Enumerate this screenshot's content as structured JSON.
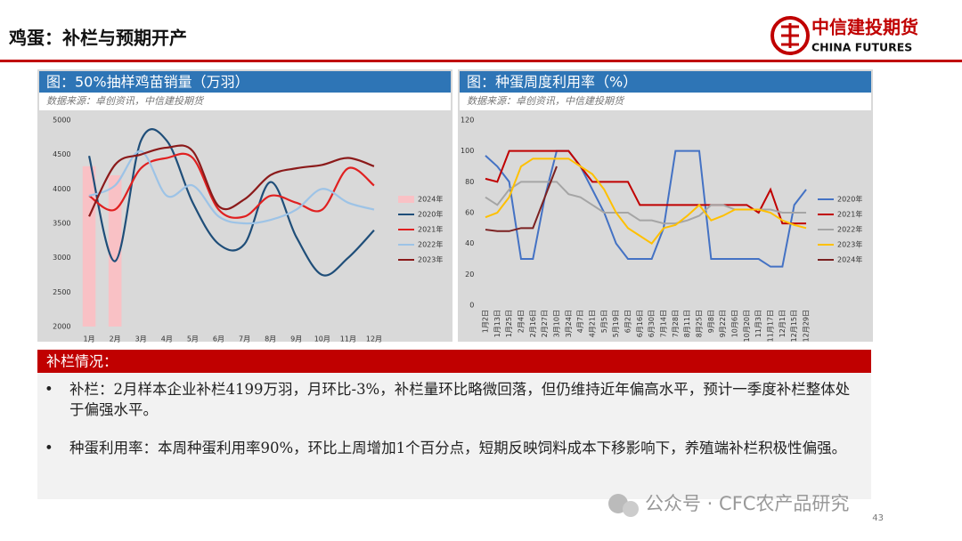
{
  "header": {
    "title": "鸡蛋：补栏与预期开产",
    "logo_cn": "中信建投期货",
    "logo_en": "CHINA FUTURES"
  },
  "chart_data": [
    {
      "type": "line",
      "smooth": true,
      "legend": "right",
      "title": "图：50%抽样鸡苗销量（万羽）",
      "subtitle": "数据来源：卓创资讯，中信建投期货",
      "categories": [
        "1月",
        "2月",
        "3月",
        "4月",
        "5月",
        "6月",
        "7月",
        "8月",
        "9月",
        "10月",
        "11月",
        "12月"
      ],
      "ylim": [
        2000,
        5000
      ],
      "yticks": [
        2000,
        2500,
        3000,
        3500,
        4000,
        4500,
        5000
      ],
      "series": [
        {
          "name": "2024年",
          "type": "bar",
          "color": "#f9c1c5",
          "values": [
            4330,
            4199,
            null,
            null,
            null,
            null,
            null,
            null,
            null,
            null,
            null,
            null
          ]
        },
        {
          "name": "2020年",
          "color": "#1f4e79",
          "values": [
            4480,
            2950,
            4700,
            4700,
            3800,
            3200,
            3200,
            4100,
            3300,
            2750,
            3000,
            3400
          ]
        },
        {
          "name": "2021年",
          "color": "#e02020",
          "values": [
            3900,
            3700,
            4300,
            4450,
            4450,
            3700,
            3600,
            3900,
            3800,
            3700,
            4300,
            4050
          ]
        },
        {
          "name": "2022年",
          "color": "#9dc3e6",
          "values": [
            3900,
            4050,
            4550,
            3900,
            4050,
            3600,
            3500,
            3550,
            3700,
            4000,
            3800,
            3700
          ]
        },
        {
          "name": "2023年",
          "color": "#8b1a1a",
          "values": [
            3600,
            4350,
            4500,
            4600,
            4550,
            3750,
            3850,
            4200,
            4300,
            4350,
            4450,
            4330
          ]
        }
      ]
    },
    {
      "type": "line",
      "legend": "right",
      "title": "图：种蛋周度利用率（%）",
      "subtitle": "数据来源：卓创资讯，中信建投期货",
      "categories": [
        "1月2日",
        "1月13日",
        "1月25日",
        "2月4日",
        "2月16日",
        "2月27日",
        "3月10日",
        "3月24日",
        "4月7日",
        "4月21日",
        "5月5日",
        "5月19日",
        "6月2日",
        "6月16日",
        "6月30日",
        "7月14日",
        "7月28日",
        "8月11日",
        "8月25日",
        "9月8日",
        "9月22日",
        "10月6日",
        "10月20日",
        "11月3日",
        "11月17日",
        "12月1日",
        "12月15日",
        "12月29日"
      ],
      "ylim": [
        0,
        120
      ],
      "yticks": [
        0,
        20,
        40,
        60,
        80,
        100,
        120
      ],
      "series": [
        {
          "name": "2020年",
          "color": "#4472c4",
          "values": [
            97,
            90,
            80,
            30,
            30,
            70,
            100,
            100,
            90,
            75,
            60,
            40,
            30,
            30,
            30,
            50,
            100,
            100,
            100,
            30,
            30,
            30,
            30,
            30,
            25,
            25,
            65,
            75
          ]
        },
        {
          "name": "2021年",
          "color": "#c00000",
          "values": [
            82,
            80,
            100,
            100,
            100,
            100,
            100,
            100,
            90,
            80,
            80,
            80,
            80,
            65,
            65,
            65,
            65,
            65,
            65,
            65,
            65,
            65,
            65,
            60,
            75,
            53,
            53,
            53
          ]
        },
        {
          "name": "2022年",
          "color": "#a5a5a5",
          "values": [
            70,
            65,
            75,
            80,
            80,
            80,
            80,
            72,
            70,
            65,
            60,
            60,
            60,
            55,
            55,
            53,
            53,
            55,
            58,
            65,
            65,
            62,
            62,
            62,
            62,
            60,
            60,
            60
          ]
        },
        {
          "name": "2023年",
          "color": "#ffc000",
          "values": [
            57,
            60,
            70,
            90,
            95,
            95,
            95,
            95,
            90,
            85,
            75,
            60,
            50,
            45,
            40,
            50,
            52,
            58,
            65,
            55,
            58,
            62,
            62,
            62,
            60,
            55,
            52,
            50
          ]
        },
        {
          "name": "2024年",
          "color": "#7b2020",
          "values": [
            49,
            48,
            48,
            50,
            50,
            70,
            90,
            null,
            null,
            null,
            null,
            null,
            null,
            null,
            null,
            null,
            null,
            null,
            null,
            null,
            null,
            null,
            null,
            null,
            null,
            null,
            null,
            null
          ]
        }
      ]
    }
  ],
  "section": {
    "title": "补栏情况：",
    "bullets": [
      "补栏：2月样本企业补栏4199万羽，月环比-3%，补栏量环比略微回落，但仍维持近年偏高水平，预计一季度补栏整体处于偏强水平。",
      "种蛋利用率：本周种蛋利用率90%，环比上周增加1个百分点，短期反映饲料成本下移影响下，养殖端补栏积极性偏强。"
    ]
  },
  "footer": {
    "watermark": "公众号 · CFC农产品研究",
    "page": "43"
  }
}
